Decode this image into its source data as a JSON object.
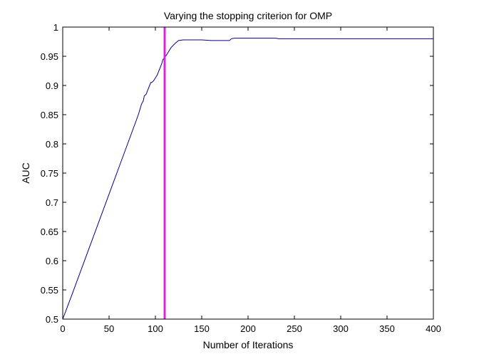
{
  "chart_data": {
    "type": "line",
    "title": "Varying the stopping criterion for OMP",
    "xlabel": "Number of Iterations",
    "ylabel": "AUC",
    "xlim": [
      0,
      400
    ],
    "ylim": [
      0.5,
      1.0
    ],
    "xticks": [
      0,
      50,
      100,
      150,
      200,
      250,
      300,
      350,
      400
    ],
    "yticks": [
      0.5,
      0.55,
      0.6,
      0.65,
      0.7,
      0.75,
      0.8,
      0.85,
      0.9,
      0.95,
      1.0
    ],
    "xtick_labels": [
      "0",
      "50",
      "100",
      "150",
      "200",
      "250",
      "300",
      "350",
      "400"
    ],
    "ytick_labels": [
      "0.5",
      "0.55",
      "0.6",
      "0.65",
      "0.7",
      "0.75",
      "0.8",
      "0.85",
      "0.9",
      "0.95",
      "1"
    ],
    "grid": false,
    "series": [
      {
        "color": "#00008b",
        "x": [
          0,
          5,
          10,
          20,
          30,
          40,
          50,
          60,
          70,
          80,
          82,
          85,
          87,
          88,
          90,
          92,
          95,
          96,
          98,
          100,
          102,
          104,
          105,
          107,
          108,
          110,
          112,
          115,
          117,
          120,
          122,
          125,
          130,
          150,
          160,
          170,
          180,
          182,
          185,
          190,
          200,
          210,
          220,
          230,
          233,
          250,
          300,
          350,
          400
        ],
        "y": [
          0.5,
          0.521,
          0.542,
          0.585,
          0.628,
          0.671,
          0.714,
          0.757,
          0.8,
          0.843,
          0.852,
          0.868,
          0.874,
          0.882,
          0.885,
          0.893,
          0.905,
          0.905,
          0.908,
          0.913,
          0.918,
          0.926,
          0.93,
          0.938,
          0.944,
          0.948,
          0.952,
          0.96,
          0.965,
          0.97,
          0.973,
          0.977,
          0.978,
          0.978,
          0.977,
          0.977,
          0.977,
          0.98,
          0.981,
          0.981,
          0.981,
          0.981,
          0.981,
          0.981,
          0.98,
          0.98,
          0.98,
          0.98,
          0.98
        ]
      }
    ],
    "vertical_lines": [
      {
        "x": 110,
        "color": "#e020e0"
      }
    ]
  }
}
